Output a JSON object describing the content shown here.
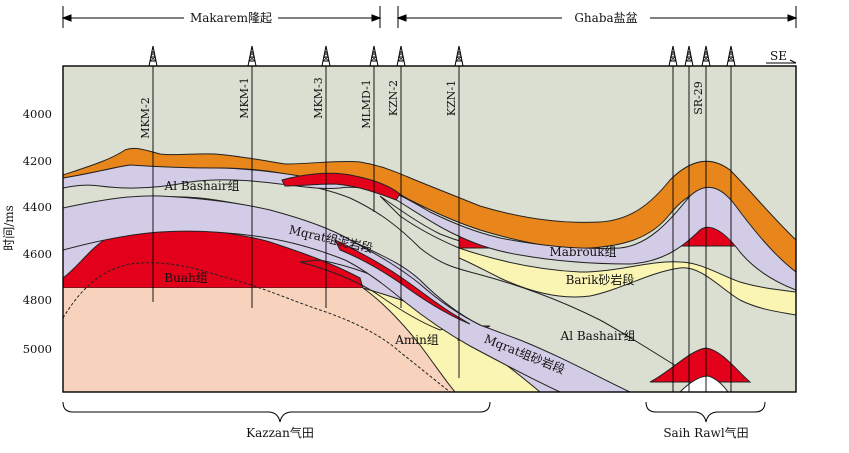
{
  "regions": {
    "left": "Makarem隆起",
    "right": "Ghaba盐盆"
  },
  "direction": "SE",
  "y_axis": {
    "label": "时间/ms",
    "ticks": [
      "4000",
      "4200",
      "4400",
      "4600",
      "4800",
      "5000"
    ]
  },
  "wells": [
    "MKM-2",
    "MKM-1",
    "MKM-3",
    "MLMD-1",
    "KZN-2",
    "KZN-1",
    "SR-29"
  ],
  "layers": {
    "al_bashair_top": "Al Bashair组",
    "mqrat_mud": "Mqrat组泥岩段",
    "buah": "Buah组",
    "amin": "Amin组",
    "mqrat_sand": "Mqrat组砂岩段",
    "mabrouk": "Mabrouk组",
    "barik": "Barik砂岩段",
    "al_bashair_right": "Al Bashair组"
  },
  "fields": {
    "kazzan": "Kazzan气田",
    "saih_rawl": "Saih  Rawl气田"
  },
  "colors": {
    "orange": "#E8861C",
    "light_purple": "#D3CCE6",
    "gray_green": "#DADFD2",
    "red": "#E2001A",
    "pale_yellow": "#FBF5B3",
    "peach": "#F7D3BE"
  }
}
